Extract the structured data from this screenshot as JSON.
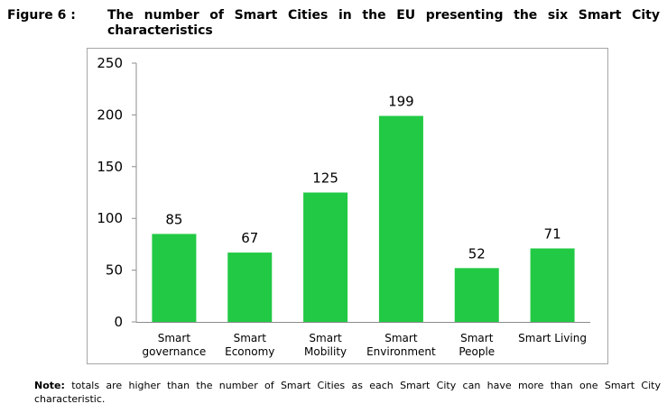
{
  "figure": {
    "label": "Figure 6 :",
    "title": "The number of Smart Cities in the EU presenting the six Smart City characteristics"
  },
  "chart_data": {
    "type": "bar",
    "categories": [
      [
        "Smart",
        "governance"
      ],
      [
        "Smart",
        "Economy"
      ],
      [
        "Smart",
        "Mobility"
      ],
      [
        "Smart",
        "Environment"
      ],
      [
        "Smart",
        "People"
      ],
      [
        "Smart Living"
      ]
    ],
    "values": [
      85,
      67,
      125,
      199,
      52,
      71
    ],
    "data_labels": [
      "85",
      "67",
      "125",
      "199",
      "52",
      "71"
    ],
    "y_ticks": [
      "0",
      "50",
      "100",
      "150",
      "200",
      "250"
    ],
    "ylim": [
      0,
      250
    ],
    "grid": false,
    "bar_color": "#22c944"
  },
  "note": {
    "label": "Note:",
    "text": " totals are higher than the number of Smart Cities as each Smart City can have more than one Smart City characteristic."
  }
}
